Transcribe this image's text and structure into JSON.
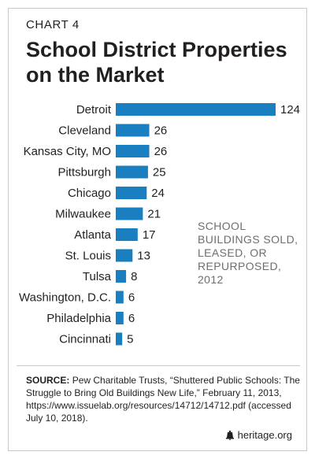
{
  "header": {
    "kicker": "CHART 4",
    "title_line1": "School District Properties",
    "title_line2": "on the Market"
  },
  "colors": {
    "bar": "#1a7fc1",
    "text": "#231f20",
    "annotation": "#6d6e71"
  },
  "annotation": [
    "SCHOOL",
    "BUILDINGS SOLD,",
    "LEASED, OR",
    "REPURPOSED,",
    "2012"
  ],
  "chart_data": {
    "type": "bar",
    "orientation": "horizontal",
    "categories": [
      "Detroit",
      "Cleveland",
      "Kansas City, MO",
      "Pittsburgh",
      "Chicago",
      "Milwaukee",
      "Atlanta",
      "St. Louis",
      "Tulsa",
      "Washington, D.C.",
      "Philadelphia",
      "Cincinnati"
    ],
    "values": [
      124,
      26,
      26,
      25,
      24,
      21,
      17,
      13,
      8,
      6,
      6,
      5
    ],
    "title": "School District Properties on the Market",
    "xlabel": "",
    "ylabel": "",
    "grid": false,
    "legend": "none",
    "xlim": [
      0,
      124
    ]
  },
  "source": {
    "label": "SOURCE:",
    "text": "Pew Charitable Trusts, “Shuttered Public Schools: The Struggle to Bring Old Buildings New Life,” February 11, 2013, https://www.issuelab.org/resources/14712/14712.pdf (accessed July 10, 2018)."
  },
  "footer": {
    "brand": "heritage.org",
    "icon": "liberty-bell-icon"
  }
}
